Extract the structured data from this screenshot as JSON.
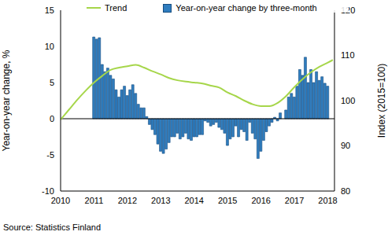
{
  "chart_data": {
    "type": "bar_line",
    "source": "Source: Statistics Finland",
    "ylabel": "Year-on-year change, %",
    "y2label": "Index (2015=100)",
    "xlim": [
      2010,
      2018.2
    ],
    "xticks": [
      2010,
      2011,
      2012,
      2013,
      2014,
      2015,
      2016,
      2017,
      2018
    ],
    "ylim": [
      -10,
      15
    ],
    "yticks": [
      -10,
      -5,
      0,
      5,
      10,
      15
    ],
    "y2lim": [
      80,
      120
    ],
    "y2ticks": [
      80,
      90,
      100,
      110,
      120
    ],
    "grid": false,
    "legend": "top",
    "series": [
      {
        "name": "Trend",
        "type": "line",
        "axis": "y2",
        "color": "#a6d64a",
        "x": [
          2010,
          2010.25,
          2010.5,
          2010.75,
          2011,
          2011.25,
          2011.5,
          2011.75,
          2012,
          2012.25,
          2012.5,
          2012.75,
          2013,
          2013.25,
          2013.5,
          2013.75,
          2014,
          2014.25,
          2014.5,
          2014.75,
          2015,
          2015.25,
          2015.5,
          2015.75,
          2016,
          2016.25,
          2016.5,
          2016.75,
          2017,
          2017.25,
          2017.5,
          2017.75,
          2018,
          2018.15
        ],
        "values": [
          95.8,
          98,
          100.2,
          102.2,
          104,
          105.5,
          106.8,
          107.3,
          107.6,
          107.9,
          107.3,
          106.5,
          105.8,
          105,
          104.5,
          104.2,
          104,
          103.8,
          103.3,
          102.9,
          101.8,
          101,
          100,
          99.2,
          98.8,
          98.8,
          99.5,
          101,
          103,
          104.8,
          106.3,
          107.5,
          108.4,
          109
        ]
      },
      {
        "name": "Year-on-year change by three-month",
        "type": "bar",
        "axis": "y",
        "color": "#2f7dbf",
        "x": [
          2011,
          2011.083,
          2011.167,
          2011.25,
          2011.333,
          2011.417,
          2011.5,
          2011.583,
          2011.667,
          2011.75,
          2011.833,
          2011.917,
          2012,
          2012.083,
          2012.167,
          2012.25,
          2012.333,
          2012.417,
          2012.5,
          2012.583,
          2012.667,
          2012.75,
          2012.833,
          2012.917,
          2013,
          2013.083,
          2013.167,
          2013.25,
          2013.333,
          2013.417,
          2013.5,
          2013.583,
          2013.667,
          2013.75,
          2013.833,
          2013.917,
          2014,
          2014.083,
          2014.167,
          2014.25,
          2014.333,
          2014.417,
          2014.5,
          2014.583,
          2014.667,
          2014.75,
          2014.833,
          2014.917,
          2015,
          2015.083,
          2015.167,
          2015.25,
          2015.333,
          2015.417,
          2015.5,
          2015.583,
          2015.667,
          2015.75,
          2015.833,
          2015.917,
          2016,
          2016.083,
          2016.167,
          2016.25,
          2016.333,
          2016.417,
          2016.5,
          2016.583,
          2016.667,
          2016.75,
          2016.833,
          2016.917,
          2017,
          2017.083,
          2017.167,
          2017.25,
          2017.333,
          2017.417,
          2017.5,
          2017.583,
          2017.667,
          2017.75,
          2017.833,
          2017.917,
          2018
        ],
        "values": [
          11.3,
          11,
          11.2,
          7.5,
          6.5,
          7,
          6,
          5.5,
          4,
          3,
          4,
          4.5,
          3.2,
          4,
          4.7,
          3.5,
          2,
          1.5,
          1.5,
          0.3,
          -0.8,
          -1.5,
          -2.2,
          -3.5,
          -4.5,
          -4.8,
          -4.2,
          -3.3,
          -2.5,
          -2.5,
          -2,
          -2.8,
          -2.5,
          -2,
          -2.8,
          -3,
          -2.5,
          -2.5,
          -2.2,
          -2.2,
          -0.3,
          -0.5,
          -1,
          -0.8,
          -0.5,
          -1.2,
          -1.5,
          -2,
          -3.7,
          -2.8,
          -2.5,
          -1,
          -2.5,
          -1.5,
          -1.8,
          -3,
          -0.5,
          -2,
          -2.8,
          -5.5,
          -4.5,
          -3,
          -1.8,
          -1,
          -0.5,
          0.2,
          -0.3,
          0.8,
          0,
          1.2,
          3,
          3.5,
          3,
          4.5,
          6.8,
          6,
          8.5,
          5,
          6.8,
          5,
          6.5,
          5.3,
          5.8,
          4.9,
          4.5
        ]
      }
    ]
  }
}
